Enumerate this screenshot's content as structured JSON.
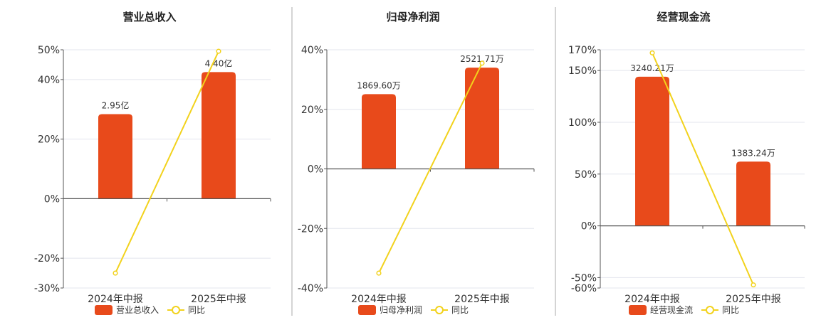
{
  "colors": {
    "bar": "#E84A1B",
    "line": "#F2D21C",
    "grid": "#E3E5EE",
    "axis": "#555555",
    "divider": "#AAAAAA"
  },
  "chart_data": [
    {
      "type": "bar",
      "title": "营业总收入",
      "categories": [
        "2024年中报",
        "2025年中报"
      ],
      "series": [
        {
          "name": "营业总收入",
          "type": "bar",
          "values": [
            28.4,
            42.5
          ],
          "labels": [
            "2.95亿",
            "4.40亿"
          ]
        },
        {
          "name": "同比",
          "type": "line",
          "values": [
            -25,
            49.5
          ]
        }
      ],
      "yticks": [
        50,
        40,
        20,
        0,
        -20,
        -30
      ],
      "ytick_labels": [
        "50%",
        "40%",
        "20%",
        "0%",
        "-20%",
        "-30%"
      ],
      "ylim": [
        -30,
        50
      ],
      "grid": true,
      "legend": "bottom"
    },
    {
      "type": "bar",
      "title": "归母净利润",
      "categories": [
        "2024年中报",
        "2025年中报"
      ],
      "series": [
        {
          "name": "归母净利润",
          "type": "bar",
          "values": [
            25.1,
            34.0
          ],
          "labels": [
            "1869.60万",
            "2521.71万"
          ]
        },
        {
          "name": "同比",
          "type": "line",
          "values": [
            -35,
            35.5
          ]
        }
      ],
      "yticks": [
        40,
        20,
        0,
        -20,
        -40
      ],
      "ytick_labels": [
        "40%",
        "20%",
        "0%",
        "-20%",
        "-40%"
      ],
      "ylim": [
        -40,
        40
      ],
      "grid": true,
      "legend": "bottom"
    },
    {
      "type": "bar",
      "title": "经营现金流",
      "categories": [
        "2024年中报",
        "2025年中报"
      ],
      "series": [
        {
          "name": "经营现金流",
          "type": "bar",
          "values": [
            144,
            62
          ],
          "labels": [
            "3240.21万",
            "1383.24万"
          ]
        },
        {
          "name": "同比",
          "type": "line",
          "values": [
            167,
            -57
          ]
        }
      ],
      "yticks": [
        170,
        150,
        100,
        50,
        0,
        -50,
        -60
      ],
      "ytick_labels": [
        "170%",
        "150%",
        "100%",
        "50%",
        "0%",
        "-50%",
        "-60%"
      ],
      "ylim": [
        -60,
        170
      ],
      "grid": true,
      "legend": "bottom"
    }
  ]
}
